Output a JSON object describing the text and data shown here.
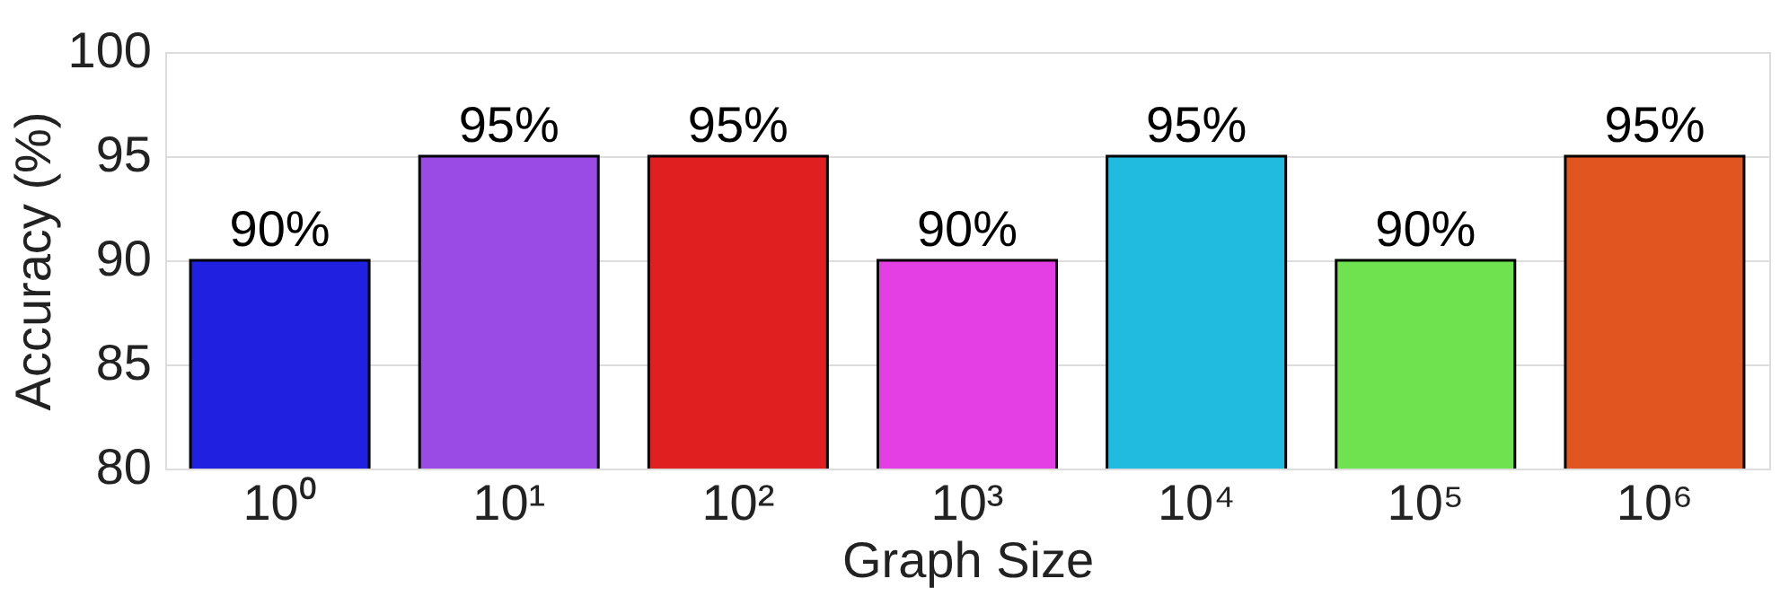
{
  "chart_data": {
    "type": "bar",
    "xlabel": "Graph Size",
    "ylabel": "Accuracy (%)",
    "categories": [
      "10⁰",
      "10¹",
      "10²",
      "10³",
      "10⁴",
      "10⁵",
      "10⁶"
    ],
    "values": [
      90,
      95,
      95,
      90,
      95,
      90,
      95
    ],
    "colors": [
      "#2020e0",
      "#9b4be5",
      "#e02020",
      "#e43fe4",
      "#22bbe0",
      "#6fe34f",
      "#e05520"
    ],
    "value_labels": [
      "90%",
      "95%",
      "95%",
      "90%",
      "95%",
      "90%",
      "95%"
    ],
    "ylim": [
      80,
      100
    ],
    "yticks": [
      80,
      85,
      90,
      95,
      100
    ],
    "grid": "y"
  }
}
